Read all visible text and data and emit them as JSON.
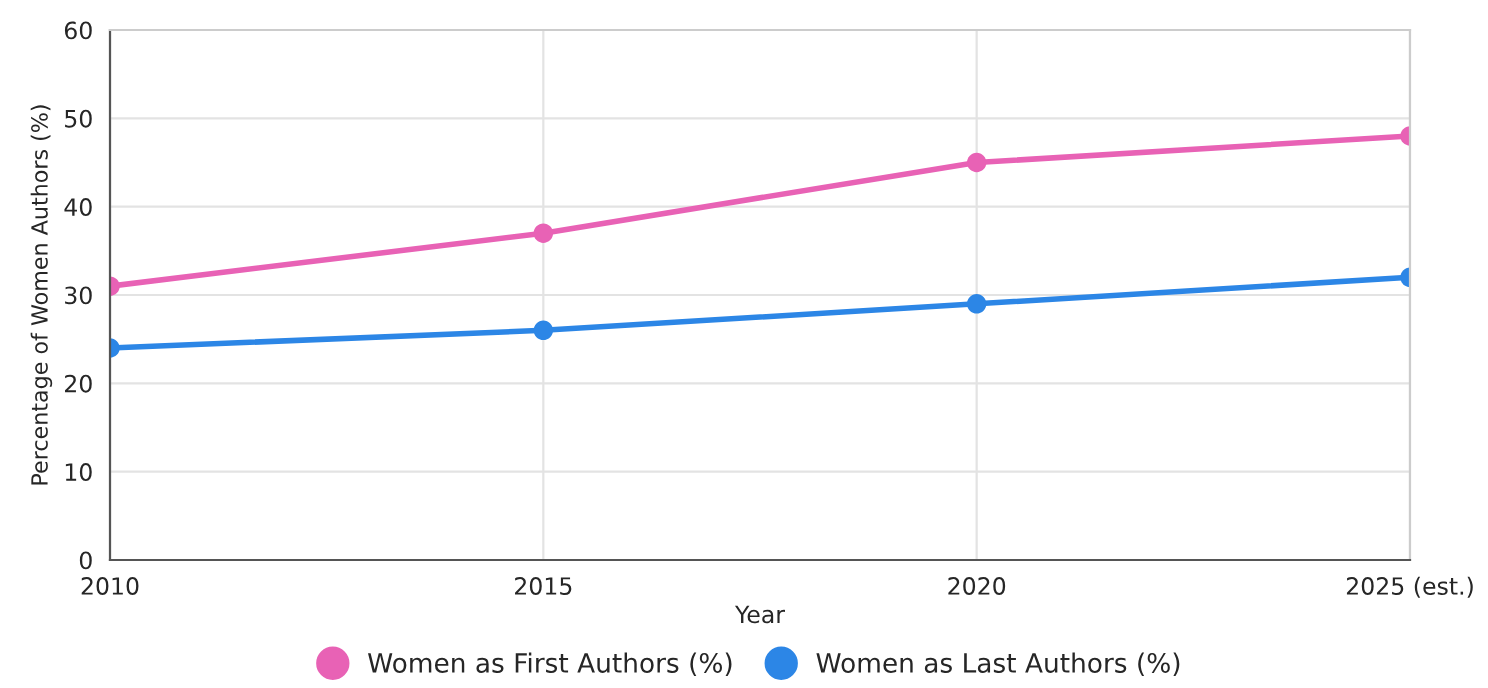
{
  "chart_data": {
    "type": "line",
    "xlabel": "Year",
    "ylabel": "Percentage of Women Authors (%)",
    "categories": [
      "2010",
      "2015",
      "2020",
      "2025 (est.)"
    ],
    "series": [
      {
        "name": "Women as First Authors (%)",
        "color": "#e862b5",
        "values": [
          31,
          37,
          45,
          48
        ]
      },
      {
        "name": "Women as Last Authors (%)",
        "color": "#2c86e6",
        "values": [
          24,
          26,
          29,
          32
        ]
      }
    ],
    "ylim": [
      0,
      60
    ],
    "yticks": [
      0,
      10,
      20,
      30,
      40,
      50,
      60
    ],
    "grid": true,
    "legend": "bottom",
    "marker": "circle",
    "line_style": "solid"
  }
}
